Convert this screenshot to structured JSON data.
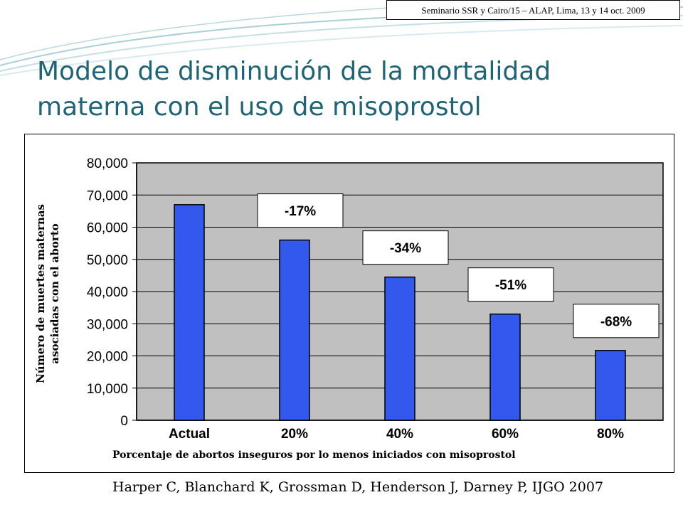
{
  "slide": {
    "header_note": "Seminario SSR y Cairo/15 – ALAP, Lima, 13 y 14 oct. 2009",
    "title_line1": "Modelo de disminución de la mortalidad",
    "title_line2": "materna con el uso de misoprostol",
    "citation": "Harper C, Blanchard K, Grossman D, Henderson J, Darney P, IJGO 2007",
    "colors": {
      "title": "#1e6477",
      "plot_bg": "#c0c0c0",
      "bar": "#3358ee"
    }
  },
  "chart_data": {
    "type": "bar",
    "categories": [
      "Actual",
      "20%",
      "40%",
      "60%",
      "80%"
    ],
    "values": [
      67000,
      56000,
      44500,
      33000,
      21700
    ],
    "annotations": [
      "",
      "-17%",
      "-34%",
      "-51%",
      "-68%"
    ],
    "ylim": [
      0,
      80000
    ],
    "yticks": [
      0,
      10000,
      20000,
      30000,
      40000,
      50000,
      60000,
      70000,
      80000
    ],
    "ytick_labels": [
      "0",
      "10,000",
      "20,000",
      "30,000",
      "40,000",
      "50,000",
      "60,000",
      "70,000",
      "80,000"
    ],
    "ylabel_line1": "Número de muertes maternas",
    "ylabel_line2": "asociadas con el aborto",
    "xlabel": "Porcentaje de abortos inseguros por lo menos iniciados con misoprostol",
    "grid": true,
    "legend": "none"
  }
}
